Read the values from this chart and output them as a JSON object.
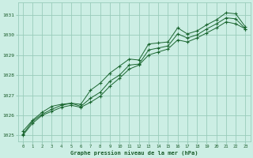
{
  "title": "Graphe pression niveau de la mer (hPa)",
  "background_color": "#cceee4",
  "grid_color": "#99ccbb",
  "text_color": "#1a5c2a",
  "line_color": "#1a6630",
  "marker_color": "#1a6630",
  "xlim": [
    -0.5,
    23.5
  ],
  "ylim": [
    1024.7,
    1031.6
  ],
  "yticks": [
    1025,
    1026,
    1027,
    1028,
    1029,
    1030,
    1031
  ],
  "xticks": [
    0,
    1,
    2,
    3,
    4,
    5,
    6,
    7,
    8,
    9,
    10,
    11,
    12,
    13,
    14,
    15,
    16,
    17,
    18,
    19,
    20,
    21,
    22,
    23
  ],
  "series": [
    [
      1025.2,
      1025.75,
      1026.15,
      1026.45,
      1026.55,
      1026.6,
      1026.55,
      1027.25,
      1027.6,
      1028.1,
      1028.45,
      1028.8,
      1028.75,
      1029.55,
      1029.6,
      1029.65,
      1030.35,
      1030.05,
      1030.2,
      1030.5,
      1030.75,
      1031.1,
      1031.05,
      1030.4
    ],
    [
      1025.05,
      1025.7,
      1026.05,
      1026.3,
      1026.5,
      1026.6,
      1026.45,
      1026.85,
      1027.15,
      1027.7,
      1028.0,
      1028.5,
      1028.55,
      1029.25,
      1029.35,
      1029.45,
      1030.05,
      1029.85,
      1030.0,
      1030.3,
      1030.55,
      1030.85,
      1030.8,
      1030.3
    ],
    [
      1025.0,
      1025.6,
      1026.0,
      1026.2,
      1026.4,
      1026.5,
      1026.4,
      1026.65,
      1026.95,
      1027.45,
      1027.85,
      1028.3,
      1028.5,
      1029.0,
      1029.15,
      1029.3,
      1029.75,
      1029.65,
      1029.85,
      1030.1,
      1030.35,
      1030.65,
      1030.55,
      1030.3
    ]
  ]
}
